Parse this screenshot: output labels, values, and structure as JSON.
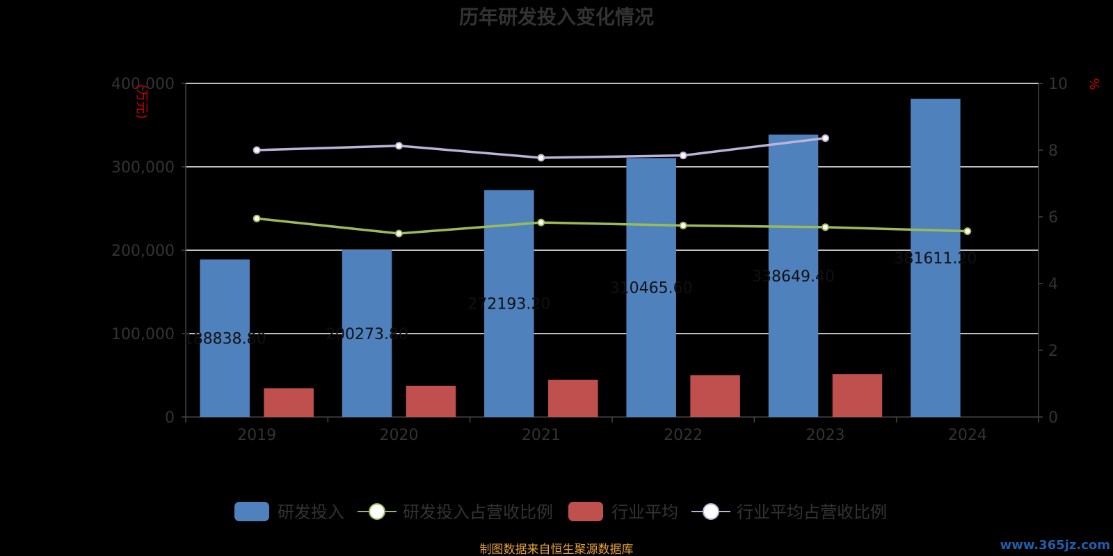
{
  "chart_data": {
    "type": "bar",
    "title": "历年研发投入变化情况",
    "categories": [
      "2019",
      "2020",
      "2021",
      "2022",
      "2023",
      "2024"
    ],
    "y_left": {
      "unit_label": "(万元)",
      "ylim": [
        0,
        400000
      ],
      "ticks": [
        0,
        100000,
        200000,
        300000,
        400000
      ],
      "tick_labels": [
        "0",
        "100,000",
        "200,000",
        "300,000",
        "400,000"
      ]
    },
    "y_right": {
      "unit_label": "%",
      "ylim": [
        0,
        10
      ],
      "ticks": [
        0,
        2,
        4,
        6,
        8,
        10
      ],
      "tick_labels": [
        "0",
        "2",
        "4",
        "6",
        "8",
        "10"
      ]
    },
    "grid": true,
    "legend_position": "bottom",
    "series": [
      {
        "name": "研发投入",
        "kind": "bar",
        "axis": "left",
        "color": "#4f81bd",
        "values": [
          188838.8,
          200273.8,
          272193.2,
          310465.6,
          338649.4,
          381611.2
        ],
        "labels": [
          "188838.80",
          "200273.80",
          "272193.20",
          "310465.60",
          "338649.40",
          "381611.20"
        ]
      },
      {
        "name": "研发投入占营收比例",
        "kind": "line",
        "axis": "right",
        "color": "#9bbb59",
        "values": [
          5.95,
          5.5,
          5.83,
          5.74,
          5.69,
          5.57
        ]
      },
      {
        "name": "行业平均",
        "kind": "bar",
        "axis": "left",
        "color": "#c0504d",
        "values": [
          34500,
          37500,
          44500,
          50000,
          51500,
          null
        ]
      },
      {
        "name": "行业平均占营收比例",
        "kind": "line",
        "axis": "right",
        "color": "#bfb2d8",
        "values": [
          8.0,
          8.13,
          7.77,
          7.84,
          8.36,
          null
        ]
      }
    ]
  },
  "footer": {
    "source": "制图数据来自恒生聚源数据库",
    "watermark": "www.365jz.com"
  }
}
